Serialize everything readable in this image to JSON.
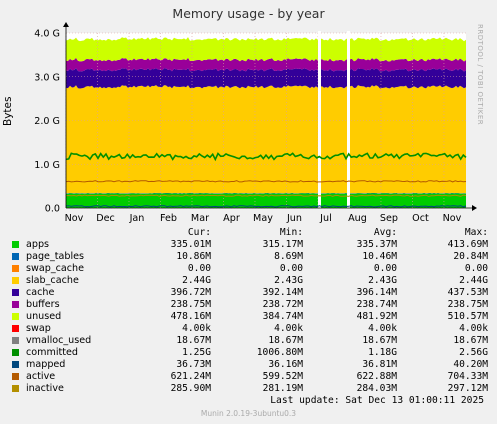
{
  "title": "Memory usage - by year",
  "side_label": "RRDTOOL / TOBI OETIKER",
  "ylabel": "Bytes",
  "footer": "Munin 2.0.19-3ubuntu0.3",
  "last_update": "Last update:  Sat Dec 13 01:00:11 2025",
  "colors": {
    "background": "#f0f0f0",
    "plot_bg": "#ffffff",
    "grid": "#d8a0a0"
  },
  "legend_headers": {
    "cur": "Cur:",
    "min": "Min:",
    "avg": "Avg:",
    "max": "Max:"
  },
  "legend": [
    {
      "name": "apps",
      "color": "#00cc00",
      "cur": "335.01M",
      "min": "315.17M",
      "avg": "335.37M",
      "max": "413.69M"
    },
    {
      "name": "page_tables",
      "color": "#0066b3",
      "cur": "10.86M",
      "min": "8.69M",
      "avg": "10.46M",
      "max": "20.84M"
    },
    {
      "name": "swap_cache",
      "color": "#ff8000",
      "cur": "0.00",
      "min": "0.00",
      "avg": "0.00",
      "max": "0.00"
    },
    {
      "name": "slab_cache",
      "color": "#ffcc00",
      "cur": "2.44G",
      "min": "2.43G",
      "avg": "2.43G",
      "max": "2.44G"
    },
    {
      "name": "cache",
      "color": "#330099",
      "cur": "396.72M",
      "min": "392.14M",
      "avg": "396.14M",
      "max": "437.53M"
    },
    {
      "name": "buffers",
      "color": "#990099",
      "cur": "238.75M",
      "min": "238.72M",
      "avg": "238.74M",
      "max": "238.75M"
    },
    {
      "name": "unused",
      "color": "#ccff00",
      "cur": "478.16M",
      "min": "384.74M",
      "avg": "481.92M",
      "max": "510.57M"
    },
    {
      "name": "swap",
      "color": "#ff0000",
      "cur": "4.00k",
      "min": "4.00k",
      "avg": "4.00k",
      "max": "4.00k"
    },
    {
      "name": "vmalloc_used",
      "color": "#808080",
      "cur": "18.67M",
      "min": "18.67M",
      "avg": "18.67M",
      "max": "18.67M"
    },
    {
      "name": "committed",
      "color": "#008f00",
      "cur": "1.25G",
      "min": "1006.80M",
      "avg": "1.18G",
      "max": "2.56G"
    },
    {
      "name": "mapped",
      "color": "#00487d",
      "cur": "36.73M",
      "min": "36.16M",
      "avg": "36.81M",
      "max": "40.20M"
    },
    {
      "name": "active",
      "color": "#b35a00",
      "cur": "621.24M",
      "min": "599.52M",
      "avg": "622.88M",
      "max": "704.33M"
    },
    {
      "name": "inactive",
      "color": "#b38f00",
      "cur": "285.90M",
      "min": "281.19M",
      "avg": "284.03M",
      "max": "297.12M"
    }
  ],
  "chart_data": {
    "type": "area",
    "title": "Memory usage - by year",
    "xlabel": "",
    "ylabel": "Bytes",
    "ylim": [
      0,
      4.0
    ],
    "y_unit": "G",
    "y_ticks": [
      "0.0",
      "1.0 G",
      "2.0 G",
      "3.0 G",
      "4.0 G"
    ],
    "categories": [
      "Nov",
      "Dec",
      "Jan",
      "Feb",
      "Mar",
      "Apr",
      "May",
      "Jun",
      "Jul",
      "Aug",
      "Sep",
      "Oct",
      "Nov"
    ],
    "gaps": [
      "Jul",
      "Aug"
    ],
    "grid": true,
    "stacked_series": [
      {
        "name": "apps",
        "color": "#00cc00",
        "value_G": 0.33
      },
      {
        "name": "page_tables",
        "color": "#0066b3",
        "value_G": 0.01
      },
      {
        "name": "swap_cache",
        "color": "#ff8000",
        "value_G": 0.0
      },
      {
        "name": "slab_cache",
        "color": "#ffcc00",
        "value_G": 2.43
      },
      {
        "name": "cache",
        "color": "#330099",
        "value_G": 0.39
      },
      {
        "name": "buffers",
        "color": "#990099",
        "value_G": 0.23
      },
      {
        "name": "unused",
        "color": "#ccff00",
        "value_G": 0.47
      }
    ],
    "line_series": [
      {
        "name": "committed",
        "color": "#008f00",
        "value_G": 1.18
      },
      {
        "name": "active",
        "color": "#b35a00",
        "value_G": 0.61
      },
      {
        "name": "inactive",
        "color": "#b38f00",
        "value_G": 0.28
      },
      {
        "name": "mapped",
        "color": "#00487d",
        "value_G": 0.04
      }
    ]
  }
}
